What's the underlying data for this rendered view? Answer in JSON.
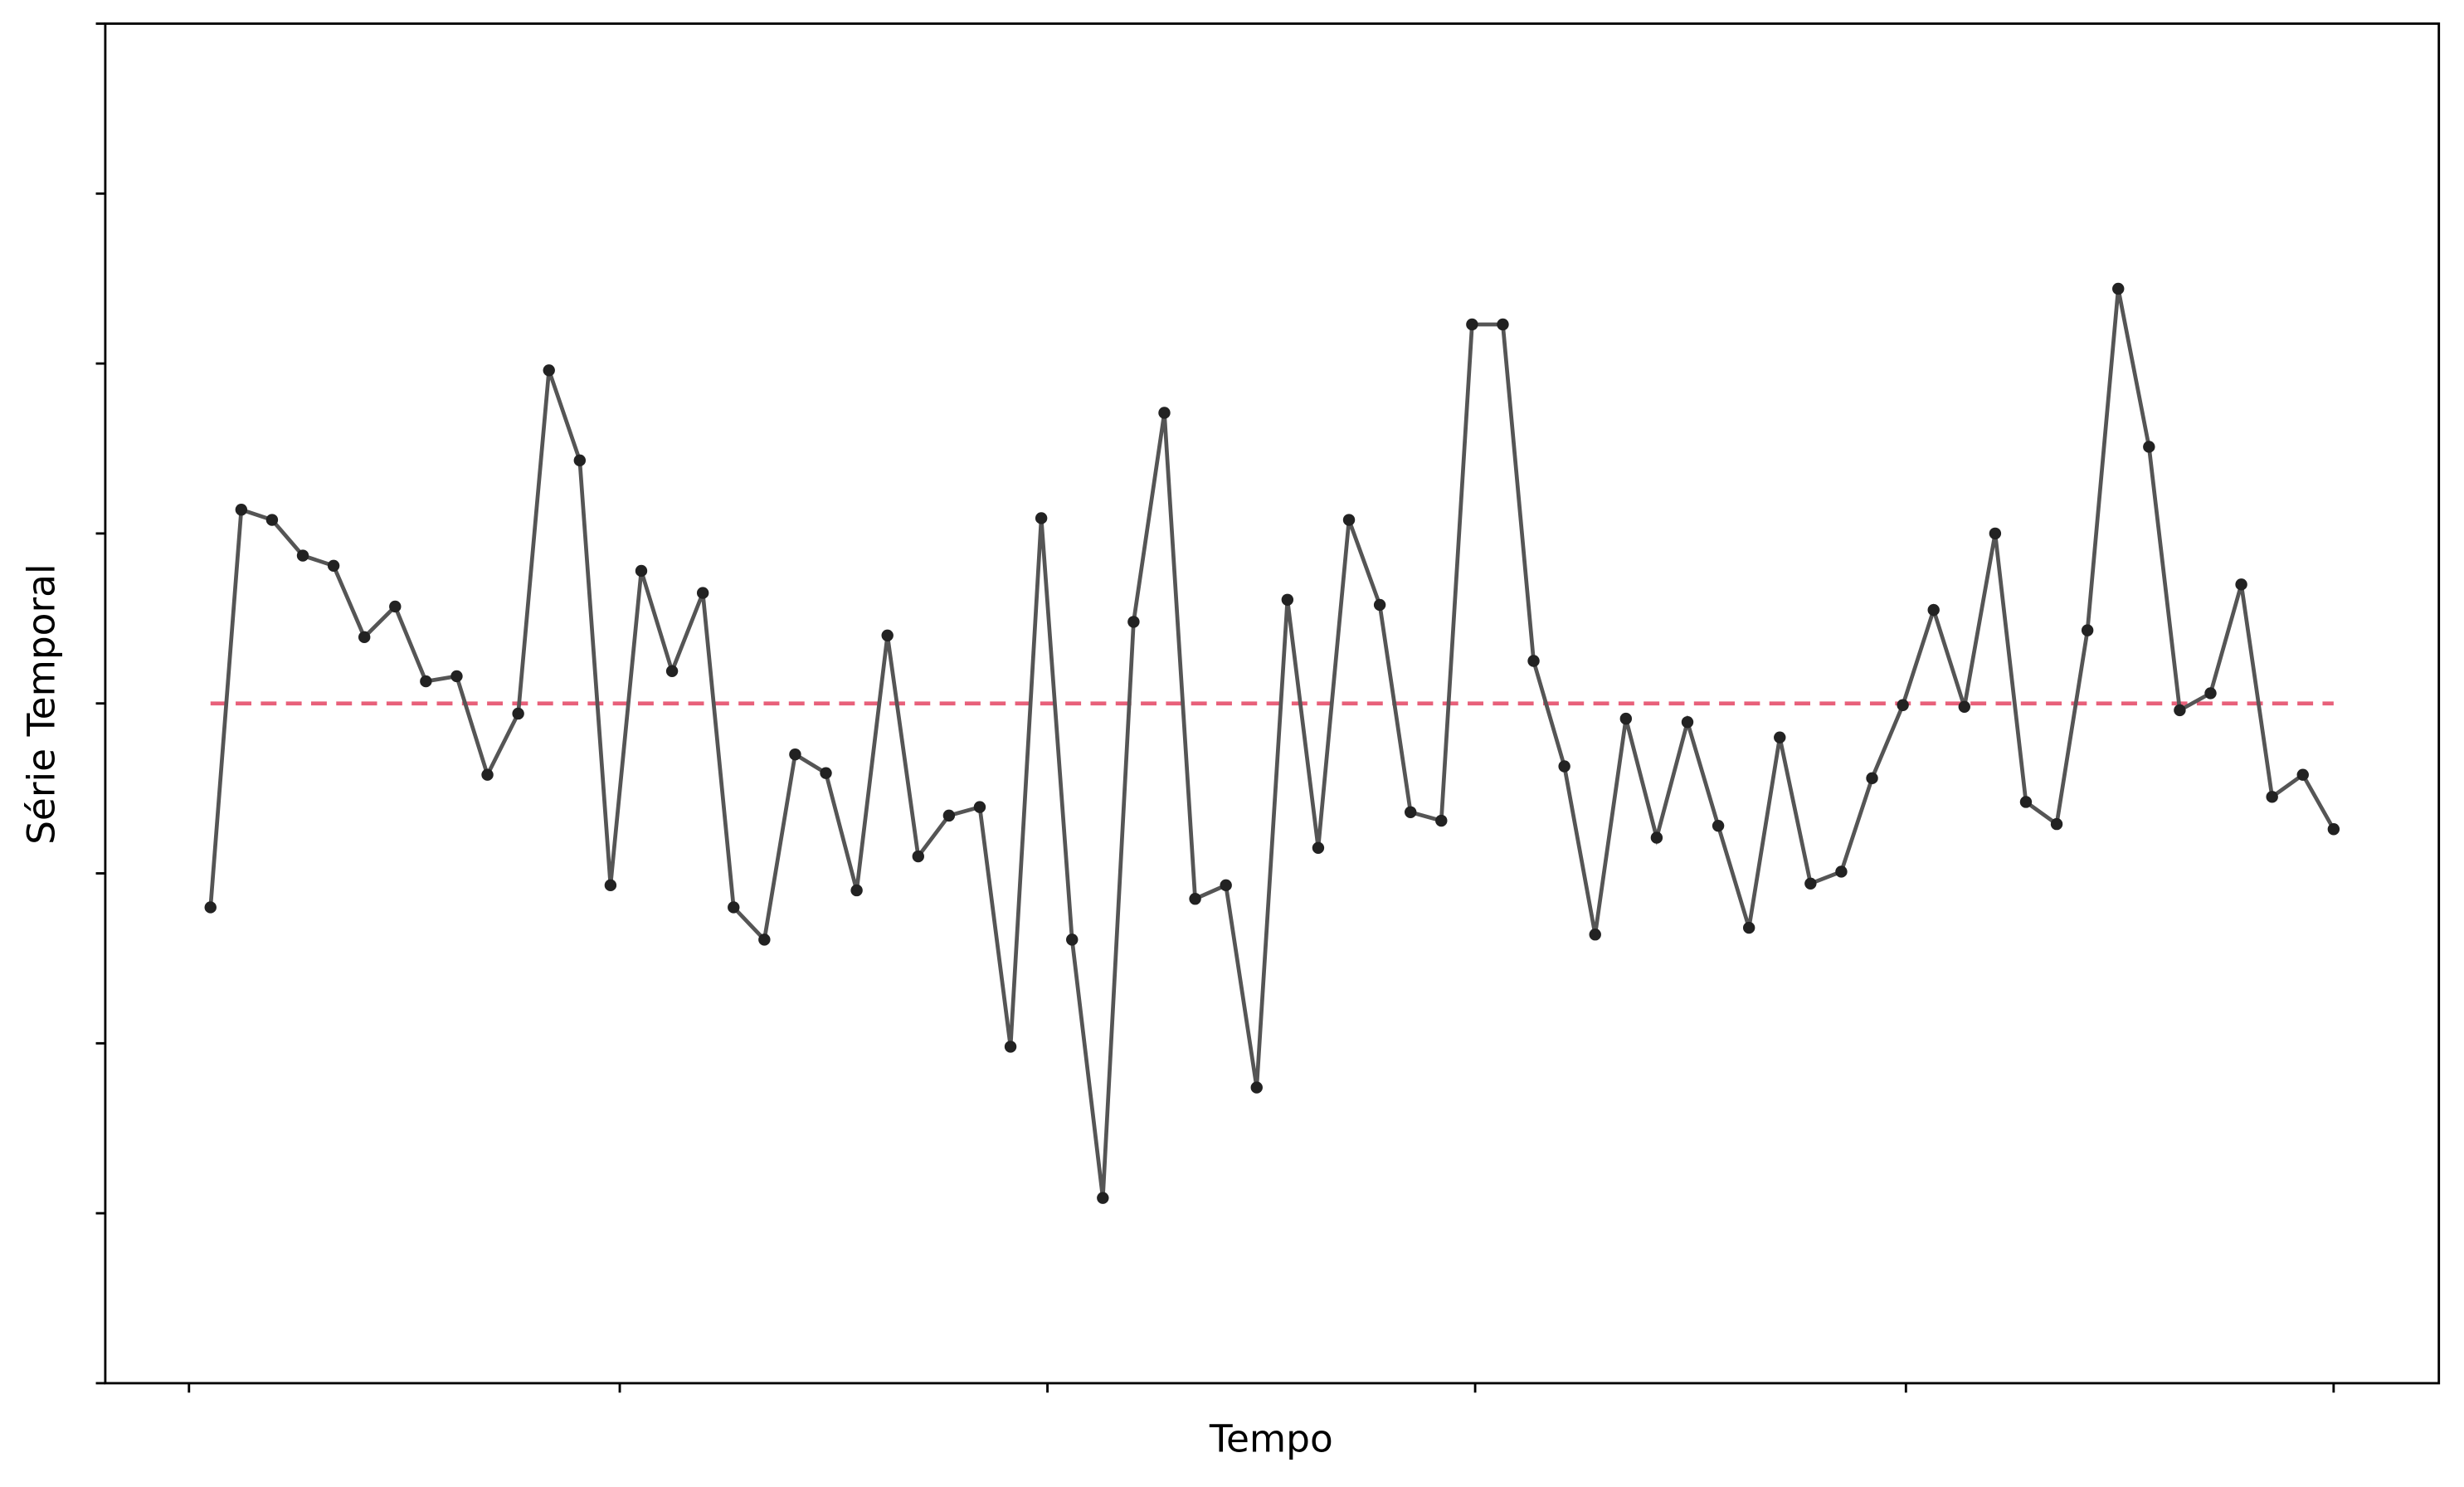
{
  "chart_data": {
    "type": "line",
    "x_label": "Tempo",
    "y_label": "Série Temporal",
    "x": [
      0,
      1,
      2,
      3,
      4,
      5,
      6,
      7,
      8,
      9,
      10,
      11,
      12,
      13,
      14,
      15,
      16,
      17,
      18,
      19,
      20,
      21,
      22,
      23,
      24,
      25,
      26,
      27,
      28,
      29,
      30,
      31,
      32,
      33,
      34,
      35,
      36,
      37,
      38,
      39,
      40,
      41,
      42,
      43,
      44,
      45,
      46,
      47,
      48,
      49,
      50,
      51,
      52,
      53,
      54,
      55,
      56,
      57,
      58,
      59,
      60,
      61,
      62,
      63,
      64,
      65,
      66,
      67,
      68,
      69
    ],
    "series": [
      {
        "color": "#555555",
        "marker_color": "#222222",
        "values": [
          -1.2,
          1.14,
          1.08,
          0.87,
          0.81,
          0.39,
          0.57,
          0.13,
          0.16,
          -0.42,
          -0.06,
          1.96,
          1.43,
          -1.07,
          0.78,
          0.19,
          0.65,
          -1.2,
          -1.39,
          -0.3,
          -0.41,
          -1.1,
          0.4,
          -0.9,
          -0.66,
          -0.61,
          -2.02,
          1.09,
          -1.39,
          -2.91,
          0.48,
          1.71,
          -1.15,
          -1.07,
          -2.26,
          0.61,
          -0.85,
          1.08,
          0.58,
          -0.64,
          -0.69,
          2.23,
          2.23,
          0.25,
          -0.37,
          -1.36,
          -0.09,
          -0.79,
          -0.11,
          -0.72,
          -1.32,
          -0.2,
          -1.06,
          -0.99,
          -0.44,
          -0.01,
          0.55,
          -0.02,
          1.0,
          -0.58,
          -0.71,
          0.43,
          2.44,
          1.51,
          -0.04,
          0.06,
          0.7,
          -0.55,
          -0.42,
          -0.74
        ]
      }
    ],
    "reference_line": {
      "value": 0,
      "color": "#e8607a"
    },
    "xlim": [
      -3.42,
      72.42
    ],
    "xticks": [
      -0.7,
      13.3,
      27.2,
      41.1,
      55.1,
      69
    ],
    "ylim": [
      -4,
      4
    ],
    "yticks": [
      -4,
      -3,
      -2,
      -1,
      0,
      1,
      2,
      3,
      4
    ]
  }
}
